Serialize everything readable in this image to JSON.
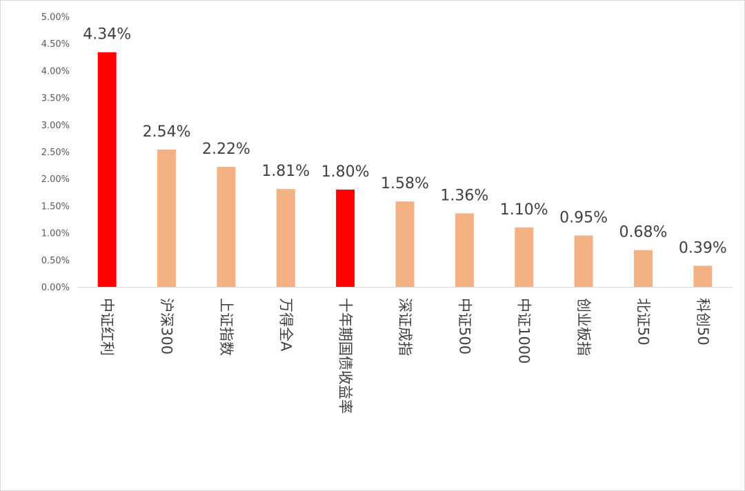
{
  "chart_data": {
    "type": "bar",
    "title": "",
    "xlabel": "",
    "ylabel": "",
    "categories": [
      "中证红利",
      "沪深300",
      "上证指数",
      "万得全A",
      "十年期国债收益率",
      "深证成指",
      "中证500",
      "中证1000",
      "创业板指",
      "北证50",
      "科创50"
    ],
    "values": [
      4.34,
      2.54,
      2.22,
      1.81,
      1.8,
      1.58,
      1.36,
      1.1,
      0.95,
      0.68,
      0.39
    ],
    "value_labels": [
      "4.34%",
      "2.54%",
      "2.22%",
      "1.81%",
      "1.80%",
      "1.58%",
      "1.36%",
      "1.10%",
      "0.95%",
      "0.68%",
      "0.39%"
    ],
    "ylim": [
      0,
      5
    ],
    "yticks": [
      0,
      0.5,
      1,
      1.5,
      2,
      2.5,
      3,
      3.5,
      4,
      4.5,
      5
    ],
    "ytick_labels": [
      "0.00%",
      "0.50%",
      "1.00%",
      "1.50%",
      "2.00%",
      "2.50%",
      "3.00%",
      "3.50%",
      "4.00%",
      "4.50%",
      "5.00%"
    ],
    "grid": false,
    "legend": "none",
    "colors": {
      "highlight": "#FF0000",
      "default": "#F4B183",
      "axis": "#D9D9D9"
    },
    "highlight_index": [
      0,
      4
    ]
  }
}
